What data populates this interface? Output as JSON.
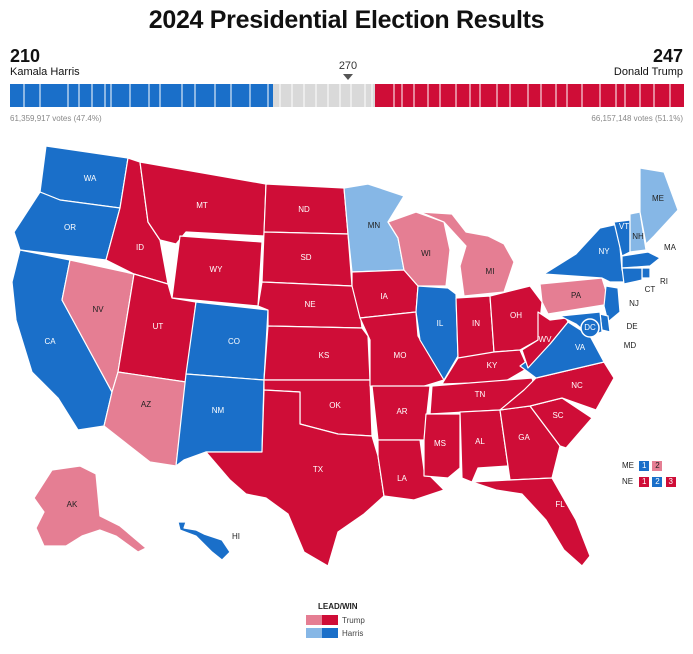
{
  "header": {
    "title": "2024 Presidential Election Results",
    "harris_ev": "210",
    "harris_name": "Kamala Harris",
    "trump_ev": "247",
    "trump_name": "Donald Trump",
    "threshold": "270",
    "harris_votes": "61,359,917 votes (47.4%)",
    "trump_votes": "66,157,148 votes (51.1%)"
  },
  "bar": {
    "harris_ev": 210,
    "uncalled_ev": 81,
    "trump_ev": 247,
    "total_ev": 538
  },
  "colors": {
    "harris_win": "#1a6fc9",
    "harris_lead": "#86b7e6",
    "trump_win": "#cf0d37",
    "trump_lead": "#e57e93",
    "uncalled": "#d9d9d9"
  },
  "map": {
    "states": [
      {
        "code": "WA",
        "status": "harris_win"
      },
      {
        "code": "OR",
        "status": "harris_win"
      },
      {
        "code": "CA",
        "status": "harris_win"
      },
      {
        "code": "NV",
        "status": "trump_lead"
      },
      {
        "code": "ID",
        "status": "trump_win"
      },
      {
        "code": "MT",
        "status": "trump_win"
      },
      {
        "code": "WY",
        "status": "trump_win"
      },
      {
        "code": "UT",
        "status": "trump_win"
      },
      {
        "code": "AZ",
        "status": "trump_lead"
      },
      {
        "code": "CO",
        "status": "harris_win"
      },
      {
        "code": "NM",
        "status": "harris_win"
      },
      {
        "code": "ND",
        "status": "trump_win"
      },
      {
        "code": "SD",
        "status": "trump_win"
      },
      {
        "code": "NE",
        "status": "trump_win"
      },
      {
        "code": "KS",
        "status": "trump_win"
      },
      {
        "code": "OK",
        "status": "trump_win"
      },
      {
        "code": "TX",
        "status": "trump_win"
      },
      {
        "code": "MN",
        "status": "harris_lead"
      },
      {
        "code": "IA",
        "status": "trump_win"
      },
      {
        "code": "MO",
        "status": "trump_win"
      },
      {
        "code": "AR",
        "status": "trump_win"
      },
      {
        "code": "LA",
        "status": "trump_win"
      },
      {
        "code": "WI",
        "status": "trump_lead"
      },
      {
        "code": "IL",
        "status": "harris_win"
      },
      {
        "code": "MI",
        "status": "trump_lead"
      },
      {
        "code": "IN",
        "status": "trump_win"
      },
      {
        "code": "OH",
        "status": "trump_win"
      },
      {
        "code": "KY",
        "status": "trump_win"
      },
      {
        "code": "TN",
        "status": "trump_win"
      },
      {
        "code": "MS",
        "status": "trump_win"
      },
      {
        "code": "AL",
        "status": "trump_win"
      },
      {
        "code": "GA",
        "status": "trump_win"
      },
      {
        "code": "FL",
        "status": "trump_win"
      },
      {
        "code": "SC",
        "status": "trump_win"
      },
      {
        "code": "NC",
        "status": "trump_win"
      },
      {
        "code": "VA",
        "status": "harris_win"
      },
      {
        "code": "WV",
        "status": "trump_win"
      },
      {
        "code": "PA",
        "status": "trump_lead"
      },
      {
        "code": "NY",
        "status": "harris_win"
      },
      {
        "code": "VT",
        "status": "harris_win"
      },
      {
        "code": "NH",
        "status": "harris_lead"
      },
      {
        "code": "ME",
        "status": "harris_lead"
      },
      {
        "code": "MA",
        "status": "harris_win"
      },
      {
        "code": "RI",
        "status": "harris_win"
      },
      {
        "code": "CT",
        "status": "harris_win"
      },
      {
        "code": "NJ",
        "status": "harris_win"
      },
      {
        "code": "DE",
        "status": "harris_win"
      },
      {
        "code": "MD",
        "status": "harris_win"
      },
      {
        "code": "DC",
        "status": "harris_win"
      },
      {
        "code": "AK",
        "status": "trump_lead"
      },
      {
        "code": "HI",
        "status": "harris_win"
      }
    ]
  },
  "splits": {
    "me": {
      "code": "ME",
      "d1": "1",
      "d2": "2"
    },
    "ne": {
      "code": "NE",
      "d1": "1",
      "d2": "2",
      "d3": "3"
    }
  },
  "legend": {
    "title": "LEAD/WIN",
    "trump": "Trump",
    "harris": "Harris"
  }
}
